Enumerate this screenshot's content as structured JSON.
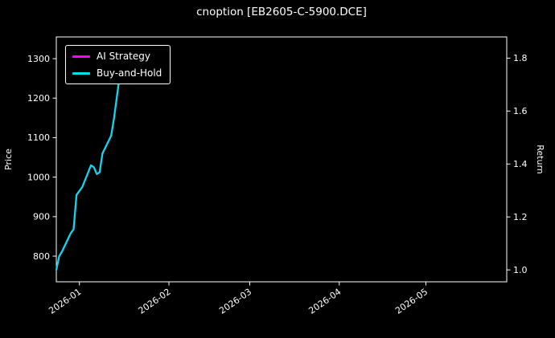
{
  "title": "cnoption [EB2605-C-5900.DCE]",
  "axes": {
    "left_label": "Price",
    "right_label": "Return",
    "x_ticks": [
      {
        "label": "2026-01",
        "date": "2026-01-01"
      },
      {
        "label": "2026-02",
        "date": "2026-02-01"
      },
      {
        "label": "2026-03",
        "date": "2026-03-01"
      },
      {
        "label": "2026-04",
        "date": "2026-04-01"
      },
      {
        "label": "2026-05",
        "date": "2026-05-01"
      }
    ],
    "left_ticks": [
      800,
      900,
      1000,
      1100,
      1200,
      1300
    ],
    "right_ticks": [
      "1.0",
      "1.2",
      "1.4",
      "1.6",
      "1.8"
    ]
  },
  "legend": {
    "items": [
      {
        "label": "AI Strategy",
        "color": "#ff00ff"
      },
      {
        "label": "Buy-and-Hold",
        "color": "#00dfe8"
      }
    ]
  },
  "chart_data": {
    "type": "line",
    "title": "cnoption [EB2605-C-5900.DCE]",
    "xlabel": "",
    "ylabel_left": "Price",
    "ylabel_right": "Return",
    "grid": false,
    "background": "#000000",
    "legend_position": "upper left",
    "x_range": [
      "2025-12-24",
      "2026-05-29"
    ],
    "price_ylim": [
      735,
      1355
    ],
    "return_ylim": [
      0.955,
      1.88
    ],
    "x": [
      "2025-12-24",
      "2025-12-25",
      "2025-12-26",
      "2025-12-29",
      "2025-12-30",
      "2025-12-31",
      "2026-01-02",
      "2026-01-05",
      "2026-01-06",
      "2026-01-07",
      "2026-01-08",
      "2026-01-09",
      "2026-01-12",
      "2026-01-13",
      "2026-01-14",
      "2026-01-15",
      "2026-01-16",
      "2026-01-19"
    ],
    "series": [
      {
        "name": "AI Strategy",
        "color": "#ff00ff",
        "prices": [
          765,
          800,
          812,
          858,
          868,
          955,
          975,
          1030,
          1025,
          1008,
          1012,
          1060,
          1105,
          1150,
          1205,
          1260,
          1285,
          1315
        ]
      },
      {
        "name": "Buy-and-Hold",
        "color": "#00dfe8",
        "prices": [
          765,
          800,
          812,
          858,
          868,
          955,
          975,
          1030,
          1025,
          1008,
          1012,
          1060,
          1105,
          1150,
          1205,
          1260,
          1285,
          1315
        ]
      }
    ]
  }
}
